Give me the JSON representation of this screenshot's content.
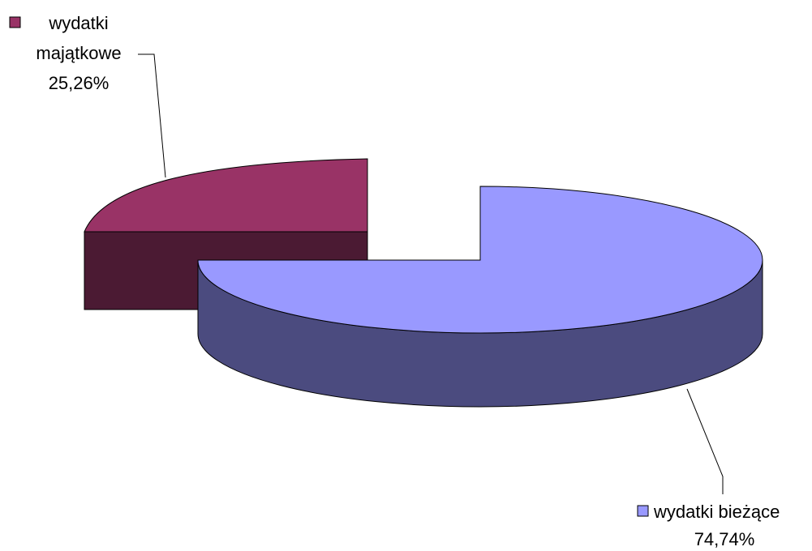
{
  "chart_data": {
    "type": "pie",
    "style": "3d-exploded",
    "legend": "none",
    "slices": [
      {
        "name_lines": [
          "wydatki",
          "majątkowe"
        ],
        "percent_label": "25,26%",
        "value": 25.26,
        "color_top": "#993366",
        "color_side": "#4b1a33"
      },
      {
        "name_lines": [
          "wydatki bieżące"
        ],
        "percent_label": "74,74%",
        "value": 74.74,
        "color_top": "#9999ff",
        "color_side": "#4b4b7f"
      }
    ]
  }
}
